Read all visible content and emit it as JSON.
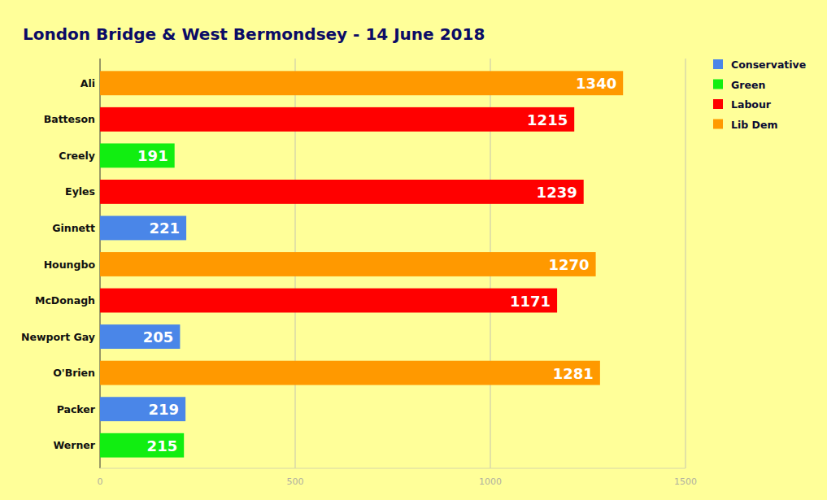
{
  "chart_data": {
    "type": "bar",
    "orientation": "horizontal",
    "title": "London Bridge & West Bermondsey - 14 June 2018",
    "categories": [
      "Ali",
      "Batteson",
      "Creely",
      "Eyles",
      "Ginnett",
      "Houngbo",
      "McDonagh",
      "Newport Gay",
      "O'Brien",
      "Packer",
      "Werner"
    ],
    "series": [
      {
        "name": "Conservative",
        "color": "#4a86e8",
        "values": [
          null,
          null,
          null,
          null,
          221,
          null,
          null,
          205,
          null,
          219,
          null
        ]
      },
      {
        "name": "Green",
        "color": "#11ee11",
        "values": [
          null,
          null,
          191,
          null,
          null,
          null,
          null,
          null,
          null,
          null,
          215
        ]
      },
      {
        "name": "Labour",
        "color": "#ff0000",
        "values": [
          null,
          1215,
          null,
          1239,
          null,
          null,
          1171,
          null,
          null,
          null,
          null
        ]
      },
      {
        "name": "Lib Dem",
        "color": "#ff9900",
        "values": [
          1340,
          null,
          null,
          null,
          null,
          1270,
          null,
          null,
          1281,
          null,
          null
        ]
      }
    ],
    "xlim": [
      0,
      1500
    ],
    "xticks": [
      0,
      500,
      1000,
      1500
    ],
    "grid": true,
    "legend": "right",
    "data_labels": true
  }
}
